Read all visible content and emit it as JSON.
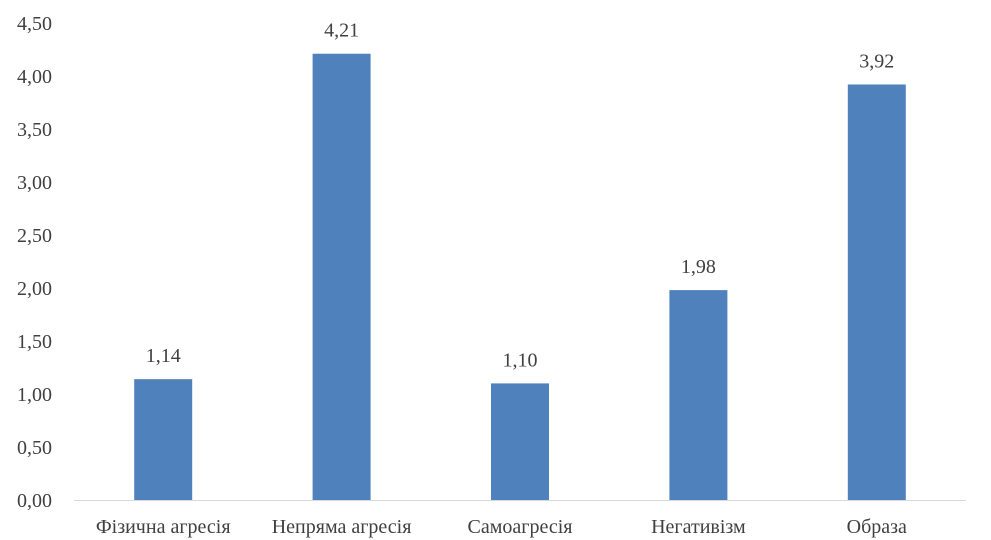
{
  "chart_data": {
    "type": "bar",
    "categories": [
      "Фізична агресія",
      "Непряма агресія",
      "Самоагресія",
      "Негативізм",
      "Образа"
    ],
    "values": [
      1.14,
      4.21,
      1.1,
      1.98,
      3.92
    ],
    "data_labels": [
      "1,14",
      "4,21",
      "1,10",
      "1,98",
      "3,92"
    ],
    "yticks": [
      "0,00",
      "0,50",
      "1,00",
      "1,50",
      "2,00",
      "2,50",
      "3,00",
      "3,50",
      "4,00",
      "4,50"
    ],
    "ylim": [
      0,
      4.5
    ],
    "grid": false,
    "legend": "none",
    "bar_color": "#4f81bd",
    "axis_color": "#d9d9d9"
  }
}
